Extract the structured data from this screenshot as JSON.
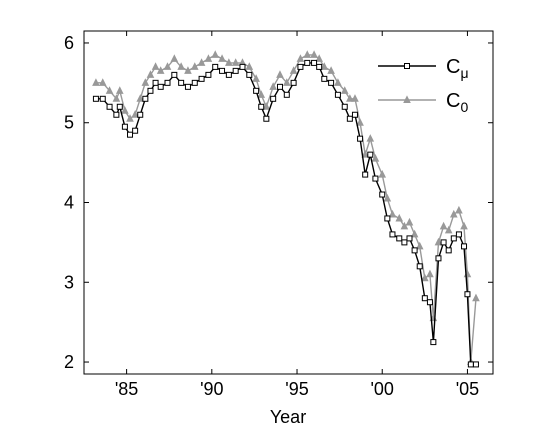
{
  "chart_data": {
    "type": "line",
    "title": "",
    "xlabel": "Year",
    "ylabel": "",
    "xlim": [
      1982.5,
      2006.5
    ],
    "ylim": [
      1.85,
      6.15
    ],
    "xticks": [
      1985,
      1990,
      1995,
      2000,
      2005
    ],
    "xtick_labels": [
      "'85",
      "'90",
      "'95",
      "'00",
      "'05"
    ],
    "yticks": [
      2,
      3,
      4,
      5,
      6
    ],
    "ytick_labels": [
      "2",
      "3",
      "4",
      "5",
      "6"
    ],
    "grid": false,
    "legend_position": "top-right",
    "series": [
      {
        "name": "C",
        "name_subscript": "μ",
        "color": "#000000",
        "marker": "square",
        "x": [
          1983.2,
          1983.6,
          1984.0,
          1984.4,
          1984.6,
          1984.9,
          1985.2,
          1985.5,
          1985.8,
          1986.1,
          1986.4,
          1986.7,
          1987.0,
          1987.4,
          1987.8,
          1988.2,
          1988.6,
          1989.0,
          1989.4,
          1989.8,
          1990.2,
          1990.6,
          1991.0,
          1991.4,
          1991.8,
          1992.2,
          1992.6,
          1992.9,
          1993.2,
          1993.6,
          1994.0,
          1994.4,
          1994.8,
          1995.2,
          1995.6,
          1996.0,
          1996.3,
          1996.6,
          1997.0,
          1997.4,
          1997.8,
          1998.1,
          1998.4,
          1998.7,
          1999.0,
          1999.3,
          1999.6,
          2000.0,
          2000.3,
          2000.6,
          2001.0,
          2001.3,
          2001.6,
          2001.9,
          2002.2,
          2002.5,
          2002.8,
          2003.0,
          2003.3,
          2003.6,
          2003.9,
          2004.2,
          2004.5,
          2004.8,
          2005.0,
          2005.2,
          2005.5
        ],
        "y": [
          5.3,
          5.3,
          5.2,
          5.1,
          5.2,
          4.95,
          4.85,
          4.9,
          5.1,
          5.3,
          5.4,
          5.5,
          5.45,
          5.5,
          5.6,
          5.5,
          5.45,
          5.5,
          5.55,
          5.6,
          5.7,
          5.65,
          5.6,
          5.65,
          5.7,
          5.6,
          5.4,
          5.2,
          5.05,
          5.3,
          5.45,
          5.35,
          5.5,
          5.7,
          5.75,
          5.75,
          5.7,
          5.55,
          5.5,
          5.35,
          5.2,
          5.05,
          5.1,
          4.8,
          4.35,
          4.6,
          4.3,
          4.1,
          3.8,
          3.6,
          3.55,
          3.5,
          3.55,
          3.4,
          3.2,
          2.8,
          2.75,
          2.25,
          3.3,
          3.5,
          3.4,
          3.55,
          3.6,
          3.45,
          2.85,
          1.97,
          1.97
        ]
      },
      {
        "name": "C",
        "name_subscript": "0",
        "color": "#999999",
        "marker": "triangle",
        "x": [
          1983.2,
          1983.6,
          1984.0,
          1984.4,
          1984.6,
          1984.9,
          1985.2,
          1985.5,
          1985.8,
          1986.1,
          1986.4,
          1986.7,
          1987.0,
          1987.4,
          1987.8,
          1988.2,
          1988.6,
          1989.0,
          1989.4,
          1989.8,
          1990.2,
          1990.6,
          1991.0,
          1991.4,
          1991.8,
          1992.2,
          1992.6,
          1992.9,
          1993.2,
          1993.6,
          1994.0,
          1994.4,
          1994.8,
          1995.2,
          1995.6,
          1996.0,
          1996.3,
          1996.6,
          1997.0,
          1997.4,
          1997.8,
          1998.1,
          1998.4,
          1998.7,
          1999.0,
          1999.3,
          1999.6,
          2000.0,
          2000.3,
          2000.6,
          2001.0,
          2001.3,
          2001.6,
          2001.9,
          2002.2,
          2002.5,
          2002.8,
          2003.0,
          2003.3,
          2003.6,
          2003.9,
          2004.2,
          2004.5,
          2004.8,
          2005.0,
          2005.2,
          2005.5
        ],
        "y": [
          5.5,
          5.5,
          5.4,
          5.3,
          5.4,
          5.15,
          5.05,
          5.1,
          5.3,
          5.5,
          5.6,
          5.7,
          5.65,
          5.7,
          5.8,
          5.7,
          5.65,
          5.7,
          5.75,
          5.8,
          5.85,
          5.8,
          5.75,
          5.75,
          5.75,
          5.7,
          5.55,
          5.35,
          5.2,
          5.45,
          5.6,
          5.5,
          5.65,
          5.8,
          5.85,
          5.85,
          5.8,
          5.7,
          5.65,
          5.5,
          5.4,
          5.3,
          5.3,
          5.0,
          4.6,
          4.8,
          4.55,
          4.35,
          4.05,
          3.85,
          3.8,
          3.7,
          3.75,
          3.6,
          3.45,
          3.05,
          3.1,
          2.55,
          3.5,
          3.7,
          3.65,
          3.85,
          3.9,
          3.7,
          3.1,
          2.0,
          2.8
        ]
      }
    ]
  }
}
